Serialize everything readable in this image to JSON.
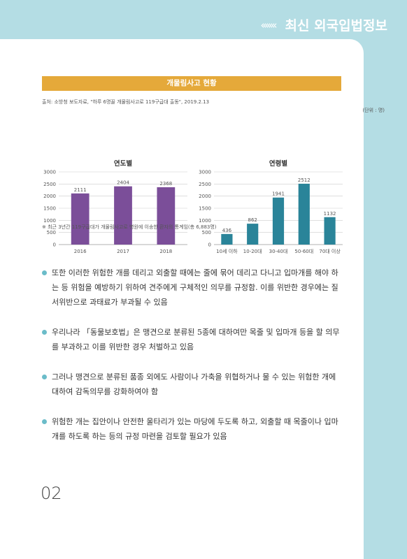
{
  "header": {
    "chevrons": "‹‹‹‹‹‹‹",
    "title": "최신 외국입법정보"
  },
  "chart_section": {
    "banner": "개물림사고 현황",
    "source": "출처: 소방청 보도자료, \"하루 6명꼴 개물림사고로 119구급대 출동\", 2019.2.13",
    "unit": "(단위 : 명)",
    "footnote": "※ 최근 3년간 119구급대가 개물림사고로 병원에 이송한 환자의 통계임(총 6,883명)"
  },
  "chart_data": [
    {
      "type": "bar",
      "title": "연도별",
      "categories": [
        "2016",
        "2017",
        "2018"
      ],
      "values": [
        2111,
        2404,
        2368
      ],
      "ylim": [
        0,
        3000
      ],
      "yticks": [
        0,
        500,
        1000,
        1500,
        2000,
        2500,
        3000
      ],
      "color": "#7b4e99",
      "grid": true
    },
    {
      "type": "bar",
      "title": "연령별",
      "categories": [
        "10세 이하",
        "10-20대",
        "30-40대",
        "50-60대",
        "70대 이상"
      ],
      "values": [
        436,
        862,
        1941,
        2512,
        1132
      ],
      "ylim": [
        0,
        3000
      ],
      "yticks": [
        0,
        500,
        1000,
        1500,
        2000,
        2500,
        3000
      ],
      "color": "#2a8499",
      "grid": true
    }
  ],
  "bullets": [
    "또한 이러한 위험한 개를 데리고 외출할 때에는 줄에 묶어 데리고 다니고 입마개를 해야 하는 등 위험을 예방하기 위하여 견주에게 구체적인 의무를 규정함. 이를 위반한 경우에는 질서위반으로 과태료가 부과될 수 있음",
    "우리나라 「동물보호법」은 맹견으로 분류된 5종에 대하여만 목줄 및 입마개 등을 할 의무를 부과하고 이를 위반한 경우 처벌하고 있음",
    "그러나 맹견으로 분류된 품종 외에도 사람이나 가축을 위협하거나 물 수 있는 위험한 개에 대하여 감독의무를 강화하여야 함",
    "위험한 개는 집안이나 안전한 울타리가 있는 마당에 두도록 하고, 외출할 때 목줄이나 입마개를 하도록 하는 등의 규정 마련을 검토할 필요가 있음"
  ],
  "page_number": "02"
}
